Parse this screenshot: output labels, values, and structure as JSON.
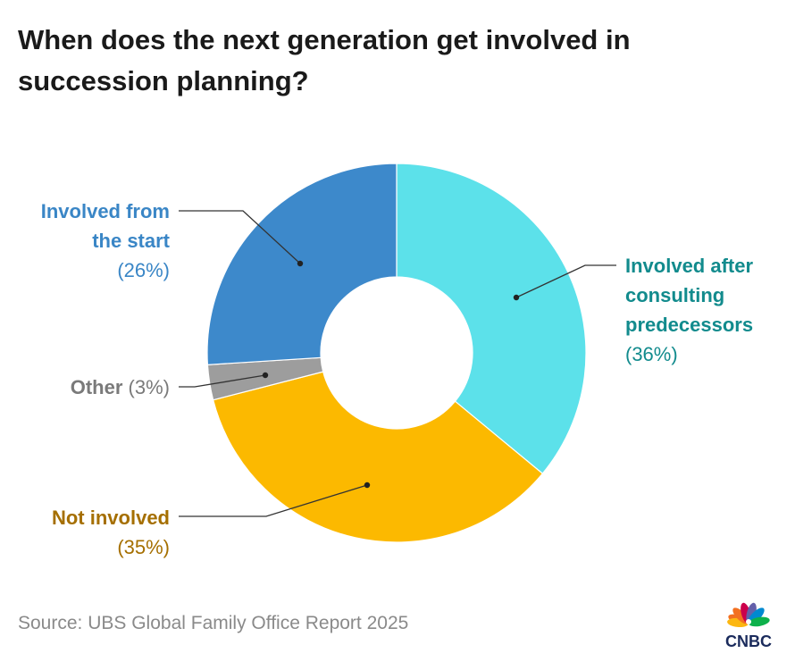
{
  "chart_data": {
    "type": "pie",
    "donut": true,
    "title": "When does the next generation get involved in succession planning?",
    "start": "top, clockwise",
    "slices": [
      {
        "label": "Involved after consulting predecessors",
        "value": 36,
        "value_label": "(36%)",
        "color": "#5CE1EA",
        "label_color": "#128B8D"
      },
      {
        "label": "Not involved",
        "value": 35,
        "value_label": "(35%)",
        "color": "#FCB900",
        "label_color": "#A56F00"
      },
      {
        "label": "Other",
        "value": 3,
        "value_label": "(3%)",
        "color": "#9D9D9D",
        "label_color": "#7A7A7A"
      },
      {
        "label": "Involved from the start",
        "value": 26,
        "value_label": "(26%)",
        "color": "#3D89CB",
        "label_color": "#3A86C6"
      }
    ]
  },
  "source": "Source: UBS Global Family Office Report 2025",
  "logo": {
    "text": "CNBC",
    "color": "#1B2B5C"
  }
}
